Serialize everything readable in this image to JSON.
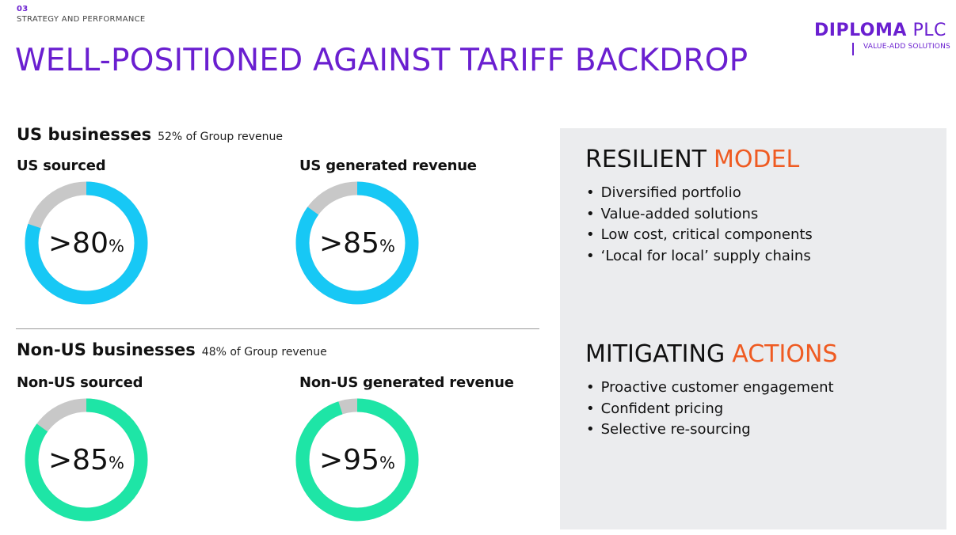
{
  "section": {
    "number": "03",
    "label": "STRATEGY AND PERFORMANCE"
  },
  "title": "WELL-POSITIONED AGAINST TARIFF BACKDROP",
  "logo": {
    "bold": "DIPLOMA",
    "light": "PLC",
    "tagline": "VALUE-ADD SOLUTIONS"
  },
  "us": {
    "title": "US businesses",
    "subtitle": "52% of Group revenue",
    "sourced": {
      "label": "US sourced",
      "value": ">80",
      "unit": "%",
      "percent": 80
    },
    "revenue": {
      "label": "US generated revenue",
      "value": ">85",
      "unit": "%",
      "percent": 85
    }
  },
  "nonus": {
    "title": "Non-US businesses",
    "subtitle": "48% of Group revenue",
    "sourced": {
      "label": "Non-US sourced",
      "value": ">85",
      "unit": "%",
      "percent": 85
    },
    "revenue": {
      "label": "Non-US generated revenue",
      "value": ">95",
      "unit": "%",
      "percent": 95
    }
  },
  "resilient": {
    "title": "RESILIENT",
    "accent": "MODEL",
    "items": [
      "Diversified portfolio",
      "Value-added solutions",
      "Low cost, critical components",
      "‘Local for local’ supply chains"
    ]
  },
  "mitigating": {
    "title": "MITIGATING",
    "accent": "ACTIONS",
    "items": [
      "Proactive customer engagement",
      "Confident pricing",
      "Selective re-sourcing"
    ]
  },
  "colors": {
    "purple": "#6a1fd0",
    "orange": "#ef5b22",
    "us_ring": "#17c8f5",
    "nonus_ring": "#1ee5a6",
    "remainder": "#c8c8c8",
    "panel": "#ebecee"
  }
}
